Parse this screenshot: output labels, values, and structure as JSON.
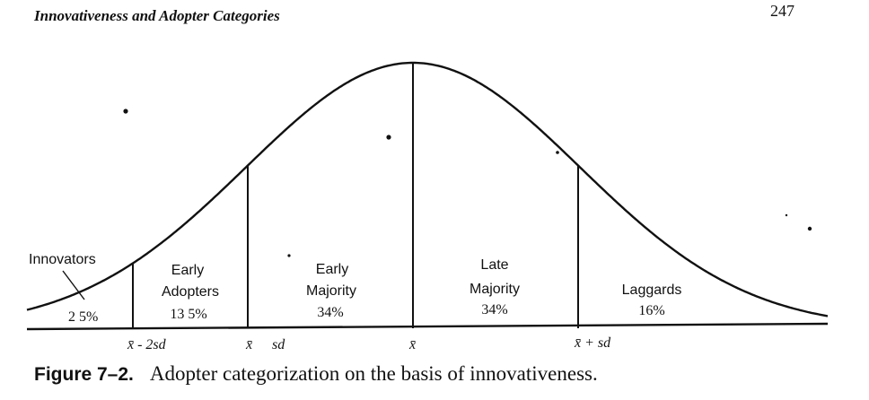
{
  "header": {
    "running_head": "Innovativeness and Adopter   Categories",
    "page_number": "247"
  },
  "diagram": {
    "categories": [
      {
        "name": "Innovators",
        "share": "2 5%"
      },
      {
        "name": [
          "Early",
          "Adopters"
        ],
        "share": "13 5%"
      },
      {
        "name": [
          "Early",
          "Majority"
        ],
        "share": "34%"
      },
      {
        "name": [
          "Late",
          "Majority"
        ],
        "share": "34%"
      },
      {
        "name": "Laggards",
        "share": "16%"
      }
    ],
    "axis_labels": {
      "mean_minus_2sd": "x̄ - 2sd",
      "mean_minus_sd_x": "x̄",
      "mean_minus_sd_sd": "sd",
      "mean": "x̄",
      "mean_plus_sd": "x̄ + sd"
    }
  },
  "caption": {
    "figure_number": "Figure 7–2.",
    "text": "Adopter categorization on the basis of innovativeness."
  }
}
